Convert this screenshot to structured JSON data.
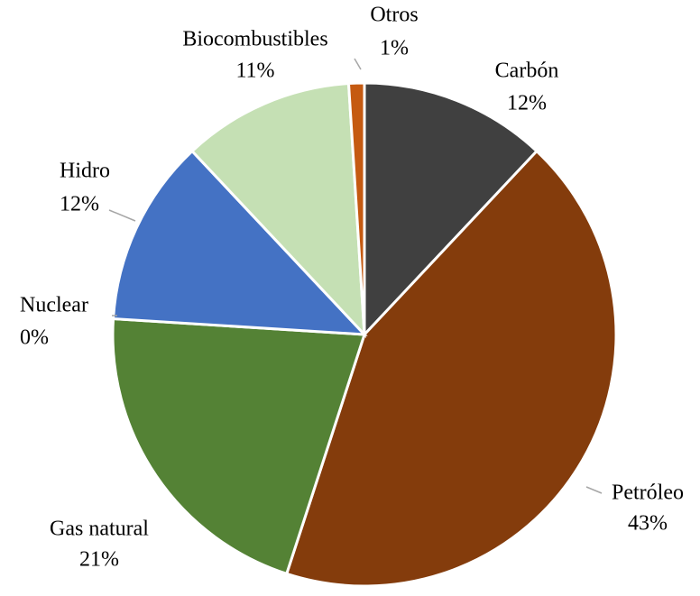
{
  "chart_data": {
    "type": "pie",
    "categories": [
      "Carbón",
      "Petróleo",
      "Gas natural",
      "Nuclear",
      "Hidro",
      "Biocombustibles",
      "Otros"
    ],
    "values": [
      12,
      43,
      21,
      0,
      12,
      11,
      1
    ],
    "value_labels": [
      "12%",
      "43%",
      "21%",
      "0%",
      "12%",
      "11%",
      "1%"
    ],
    "colors": [
      "#404040",
      "#843c0c",
      "#548235",
      "#a5a5a5",
      "#4472c4",
      "#c5e0b4",
      "#c55a11"
    ]
  }
}
